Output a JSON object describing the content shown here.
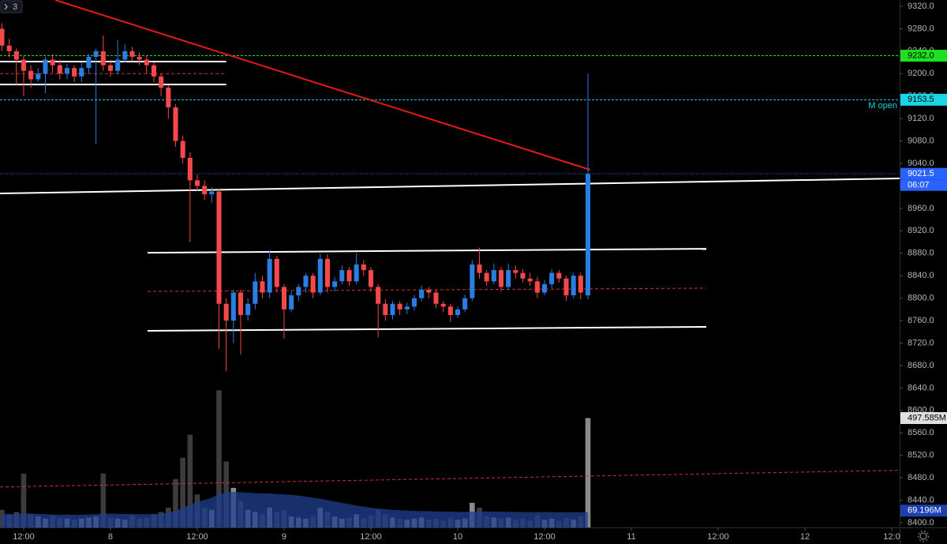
{
  "chart_data": {
    "type": "candlestick",
    "interval": "3",
    "xlim": [
      -0.27,
      124.09
    ],
    "ylim": [
      8391.6,
      9331.2
    ],
    "vlim": [
      0,
      2400
    ],
    "xticks": [
      {
        "value": 3,
        "label": "12:00"
      },
      {
        "value": 15,
        "label": "8"
      },
      {
        "value": 27,
        "label": "12:00"
      },
      {
        "value": 39,
        "label": "9"
      },
      {
        "value": 51,
        "label": "12:00"
      },
      {
        "value": 63,
        "label": "10"
      },
      {
        "value": 75,
        "label": "12:00"
      },
      {
        "value": 87,
        "label": "11"
      },
      {
        "value": 99,
        "label": "12:00"
      },
      {
        "value": 111,
        "label": "12"
      },
      {
        "value": 123,
        "label": "12:0"
      }
    ],
    "yticks": [
      {
        "value": 8400,
        "label": "8400.0"
      },
      {
        "value": 8440,
        "label": "8440.0"
      },
      {
        "value": 8480,
        "label": "8480.0"
      },
      {
        "value": 8520,
        "label": "8520.0"
      },
      {
        "value": 8560,
        "label": "8560.0"
      },
      {
        "value": 8600,
        "label": "8600.0"
      },
      {
        "value": 8640,
        "label": "8640.0"
      },
      {
        "value": 8680,
        "label": "8680.0"
      },
      {
        "value": 8720,
        "label": "8720.0"
      },
      {
        "value": 8760,
        "label": "8760.0"
      },
      {
        "value": 8800,
        "label": "8800.0"
      },
      {
        "value": 8840,
        "label": "8840.0"
      },
      {
        "value": 8880,
        "label": "8880.0"
      },
      {
        "value": 8920,
        "label": "8920.0"
      },
      {
        "value": 8960,
        "label": "8960.0"
      },
      {
        "value": 9000,
        "label": "9000.0"
      },
      {
        "value": 9040,
        "label": "9040.0"
      },
      {
        "value": 9080,
        "label": "9080.0"
      },
      {
        "value": 9120,
        "label": "9120.0"
      },
      {
        "value": 9160,
        "label": "9160.0"
      },
      {
        "value": 9200,
        "label": "9200.0"
      },
      {
        "value": 9240,
        "label": "9240.0"
      },
      {
        "value": 9280,
        "label": "9280.0"
      },
      {
        "value": 9320,
        "label": "9320.0"
      }
    ],
    "up_color": "#2a7de1",
    "down_color": "#f5484b",
    "volume_up_color": "#8a8a8a",
    "volume_down_color": "#3c3c3c",
    "volume_ma_color": "#1f3f8f",
    "open": [
      9280,
      9250,
      9240,
      9225,
      9205,
      9190,
      9200,
      9225,
      9215,
      9200,
      9210,
      9195,
      9210,
      9230,
      9240,
      9215,
      9205,
      9225,
      9240,
      9230,
      9225,
      9215,
      9195,
      9175,
      9140,
      9080,
      9050,
      9010,
      9000,
      8985,
      8990,
      8790,
      8760,
      8810,
      8770,
      8790,
      8830,
      8810,
      8870,
      8820,
      8780,
      8805,
      8820,
      8840,
      8810,
      8870,
      8820,
      8830,
      8850,
      8830,
      8860,
      8850,
      8820,
      8790,
      8770,
      8790,
      8780,
      8785,
      8800,
      8815,
      8810,
      8790,
      8785,
      8770,
      8780,
      8800,
      8860,
      8845,
      8830,
      8850,
      8820,
      8850,
      8845,
      8835,
      8830,
      8810,
      8825,
      8845,
      8835,
      8805,
      8840,
      8805
    ],
    "high": [
      9290,
      9262,
      9245,
      9232,
      9215,
      9210,
      9230,
      9235,
      9225,
      9218,
      9215,
      9220,
      9235,
      9245,
      9268,
      9225,
      9260,
      9252,
      9248,
      9238,
      9232,
      9220,
      9200,
      9180,
      9145,
      9090,
      9060,
      9020,
      9010,
      8998,
      8995,
      8800,
      8815,
      8815,
      8800,
      8845,
      8840,
      8885,
      8875,
      8825,
      8812,
      8825,
      8845,
      8845,
      8880,
      8878,
      8838,
      8858,
      8855,
      8880,
      8868,
      8855,
      8825,
      8798,
      8795,
      8795,
      8792,
      8806,
      8822,
      8820,
      8815,
      8795,
      8790,
      8785,
      8806,
      8868,
      8890,
      8850,
      8862,
      8855,
      8862,
      8858,
      8852,
      8845,
      8838,
      8832,
      8852,
      8850,
      8840,
      8845,
      8845,
      9200
    ],
    "low": [
      9240,
      9230,
      9180,
      9160,
      9175,
      9185,
      9165,
      9200,
      9190,
      9190,
      9185,
      9185,
      9200,
      9075,
      9205,
      9195,
      9200,
      9220,
      9222,
      9215,
      9200,
      9185,
      9160,
      9120,
      9070,
      9040,
      8900,
      8990,
      8975,
      8970,
      8710,
      8670,
      8720,
      8700,
      8760,
      8780,
      8800,
      8800,
      8810,
      8728,
      8775,
      8795,
      8810,
      8800,
      8805,
      8810,
      8812,
      8825,
      8822,
      8825,
      8840,
      8812,
      8730,
      8760,
      8762,
      8770,
      8772,
      8778,
      8795,
      8800,
      8782,
      8775,
      8758,
      8765,
      8775,
      8795,
      8835,
      8822,
      8825,
      8812,
      8815,
      8835,
      8828,
      8822,
      8800,
      8805,
      8818,
      8828,
      8795,
      8800,
      8798,
      8798
    ],
    "close": [
      9250,
      9240,
      9225,
      9205,
      9190,
      9200,
      9225,
      9215,
      9200,
      9210,
      9195,
      9210,
      9230,
      9240,
      9215,
      9205,
      9225,
      9240,
      9230,
      9225,
      9215,
      9195,
      9175,
      9140,
      9080,
      9050,
      9010,
      9000,
      8985,
      8990,
      8790,
      8760,
      8810,
      8770,
      8790,
      8830,
      8810,
      8870,
      8820,
      8780,
      8805,
      8820,
      8840,
      8810,
      8870,
      8820,
      8830,
      8850,
      8830,
      8860,
      8850,
      8820,
      8790,
      8770,
      8790,
      8780,
      8785,
      8800,
      8815,
      8810,
      8790,
      8785,
      8770,
      8780,
      8800,
      8860,
      8845,
      8830,
      8850,
      8820,
      8850,
      8845,
      8835,
      8830,
      8810,
      8825,
      8845,
      8835,
      8805,
      8840,
      8810,
      9021.5
    ],
    "volume": [
      80,
      60,
      70,
      245,
      60,
      50,
      40,
      55,
      45,
      40,
      35,
      40,
      45,
      50,
      245,
      45,
      40,
      35,
      55,
      40,
      45,
      60,
      70,
      90,
      220,
      317,
      422,
      150,
      90,
      80,
      624,
      300,
      180,
      120,
      80,
      70,
      60,
      90,
      70,
      80,
      50,
      45,
      40,
      50,
      90,
      70,
      50,
      40,
      45,
      60,
      40,
      55,
      80,
      60,
      45,
      40,
      35,
      40,
      45,
      35,
      40,
      30,
      45,
      35,
      40,
      112,
      90,
      50,
      45,
      40,
      45,
      35,
      40,
      30,
      55,
      35,
      40,
      30,
      45,
      35,
      50,
      497.585
    ],
    "volume_label": "497.585M",
    "volume_ma": [
      62,
      60,
      61,
      64,
      63,
      62,
      60,
      59,
      58,
      58,
      57,
      58,
      59,
      60,
      64,
      63,
      62,
      61,
      61,
      60,
      60,
      61,
      63,
      66,
      75,
      88,
      105,
      115,
      125,
      135,
      150,
      158,
      162,
      160,
      158,
      156,
      155,
      154,
      152,
      150,
      148,
      145,
      140,
      135,
      130,
      125,
      118,
      112,
      106,
      100,
      95,
      90,
      86,
      83,
      80,
      78,
      76,
      75,
      74,
      74,
      73,
      72,
      72,
      71,
      71,
      72,
      73,
      73,
      72,
      72,
      71,
      71,
      70,
      70,
      70,
      70,
      70,
      69,
      69,
      69,
      69,
      69.196
    ],
    "volume_ma_label": "69.196M",
    "volume_level": {
      "from": 184,
      "to": 260,
      "color": "#d32f2f"
    },
    "levels": [
      {
        "value": 9232,
        "label": "9232.0",
        "color": "#1fe01f"
      },
      {
        "value": 9153.5,
        "label": "9153.5",
        "color": "#18d6e6",
        "text": "M open"
      }
    ],
    "last_price": {
      "value": 9021.5,
      "label": "9021.5",
      "countdown": "06:07",
      "color": "#2962ff"
    },
    "drawings": [
      {
        "from": [
          -0.27,
          8986.6
        ],
        "to": [
          124.09,
          9013.3
        ],
        "color": "#ffffff",
        "width": 2,
        "dashed": false
      },
      {
        "from": [
          -0.27,
          9221.5
        ],
        "to": [
          31.0,
          9221.5
        ],
        "color": "#ffffff",
        "width": 2,
        "dashed": false
      },
      {
        "from": [
          -0.27,
          9180.7
        ],
        "to": [
          31.0,
          9180.7
        ],
        "color": "#ffffff",
        "width": 2,
        "dashed": false
      },
      {
        "from": [
          -0.27,
          9200
        ],
        "to": [
          31.0,
          9200
        ],
        "color": "#d32f2f",
        "width": 1,
        "dashed": true
      },
      {
        "from": [
          20.13,
          8881
        ],
        "to": [
          97.36,
          8888
        ],
        "color": "#ffffff",
        "width": 2,
        "dashed": false
      },
      {
        "from": [
          20.13,
          8741.8
        ],
        "to": [
          97.36,
          8748.9
        ],
        "color": "#ffffff",
        "width": 2,
        "dashed": false
      },
      {
        "from": [
          20.13,
          8812
        ],
        "to": [
          97.36,
          8817.8
        ],
        "color": "#d32f2f",
        "width": 1,
        "dashed": true
      },
      {
        "from": [
          7.36,
          9331.2
        ],
        "to": [
          81.3,
          9028.8
        ],
        "color": "#e5191b",
        "width": 2,
        "dashed": false
      }
    ]
  }
}
